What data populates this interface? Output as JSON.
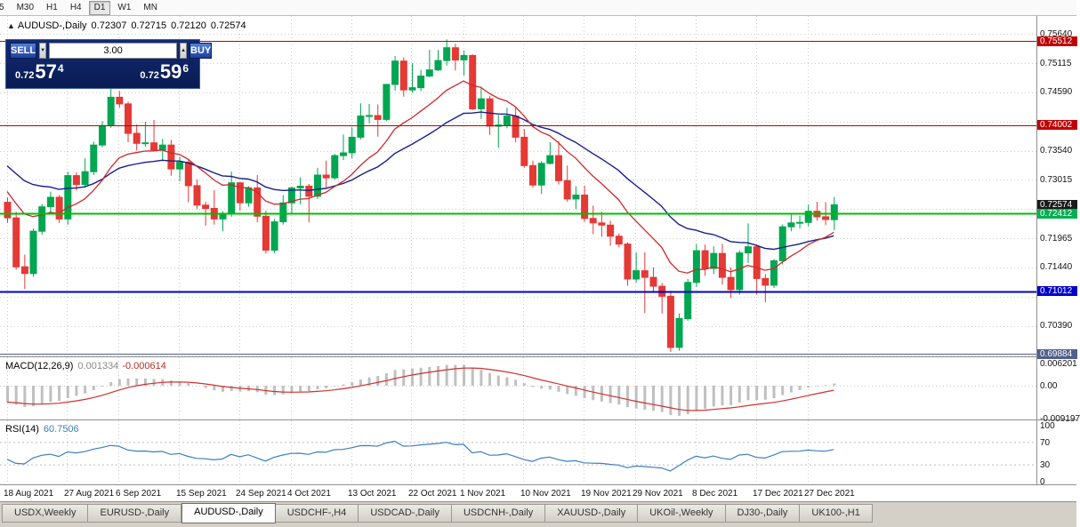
{
  "toolbar": {
    "timeframes": [
      {
        "label": "5",
        "active": false
      },
      {
        "label": "M30",
        "active": false
      },
      {
        "label": "H1",
        "active": false
      },
      {
        "label": "H4",
        "active": false
      },
      {
        "label": "D1",
        "active": true
      },
      {
        "label": "W1",
        "active": false
      },
      {
        "label": "MN",
        "active": false
      }
    ]
  },
  "chart_header": {
    "collapse_icon": "▲",
    "title": "AUDUSD-,Daily",
    "open": "0.72307",
    "high": "0.72715",
    "low": "0.72120",
    "close": "0.72574"
  },
  "trade_panel": {
    "sell_label": "SELL",
    "buy_label": "BUY",
    "volume_value": "3.00",
    "spin_down_icon": "▼",
    "spin_up_icon": "▲",
    "sell_price_main": "0.72",
    "sell_price_pips": "57",
    "sell_price_point": "4",
    "buy_price_main": "0.72",
    "buy_price_pips": "59",
    "buy_price_point": "6"
  },
  "price_axis": {
    "grid_prices": [
      0.7564,
      0.75115,
      0.7459,
      0.74065,
      0.7354,
      0.73015,
      0.7249,
      0.71965,
      0.7144,
      0.70915,
      0.7039,
      0.69865
    ],
    "tick_labels": [
      {
        "label": "0.75640",
        "price": 0.7564
      },
      {
        "label": "0.75115",
        "price": 0.75115
      },
      {
        "label": "0.74590",
        "price": 0.7459
      },
      {
        "label": "0.73540",
        "price": 0.7354
      },
      {
        "label": "0.73015",
        "price": 0.73015
      },
      {
        "label": "0.71965",
        "price": 0.71965
      },
      {
        "label": "0.71440",
        "price": 0.7144
      },
      {
        "label": "0.70390",
        "price": 0.7039
      }
    ],
    "badges": [
      {
        "label": "0.75512",
        "price": 0.75512,
        "color": "#c00000"
      },
      {
        "label": "0.74002",
        "price": 0.74002,
        "color": "#c00000"
      },
      {
        "label": "0.72574",
        "price": 0.72574,
        "color": "#1a1a1a"
      },
      {
        "label": "0.72412",
        "price": 0.72412,
        "color": "#00b050"
      },
      {
        "label": "0.71012",
        "price": 0.71012,
        "color": "#0000c8"
      },
      {
        "label": "0.69884",
        "price": 0.69884,
        "color": "#50608a"
      }
    ]
  },
  "horizontal_lines": [
    {
      "name": "resistance-7551",
      "price": 0.75512,
      "color": "#c00000",
      "width": 1
    },
    {
      "name": "resistance-7400",
      "price": 0.74002,
      "color": "#c00000",
      "width": 1
    },
    {
      "name": "support-green-7241",
      "price": 0.72412,
      "color": "#00c000",
      "width": 2
    },
    {
      "name": "support-blue-7101",
      "price": 0.71012,
      "color": "#0000c8",
      "width": 2
    },
    {
      "name": "support-low-6988",
      "price": 0.69884,
      "color": "#50608a",
      "width": 1
    }
  ],
  "date_axis": {
    "labels": [
      "18 Aug 2021",
      "27 Aug 2021",
      "6 Sep 2021",
      "15 Sep 2021",
      "24 Sep 2021",
      "4 Oct 2021",
      "13 Oct 2021",
      "22 Oct 2021",
      "1 Nov 2021",
      "10 Nov 2021",
      "19 Nov 2021",
      "29 Nov 2021",
      "8 Dec 2021",
      "17 Dec 2021",
      "27 Dec 2021"
    ],
    "candle_indices": [
      0,
      7,
      13,
      20,
      27,
      33,
      40,
      47,
      53,
      60,
      67,
      73,
      80,
      87,
      93
    ]
  },
  "macd_panel": {
    "label": "MACD(12,26,9)",
    "main_value": "0.001334",
    "signal_value": "-0.000614",
    "histogram_color": "#c0c0c0",
    "signal_color": "#d03030",
    "axis_labels": [
      {
        "label": "0.006201",
        "value": 0.006201
      },
      {
        "label": "0.00",
        "value": 0
      },
      {
        "label": "-0.009197",
        "value": -0.009197
      }
    ]
  },
  "rsi_panel": {
    "label": "RSI(14)",
    "value": "60.7506",
    "line_color": "#3e7ec1",
    "levels": [
      70,
      30
    ],
    "axis_labels": [
      {
        "label": "100",
        "value": 100
      },
      {
        "label": "70",
        "value": 70
      },
      {
        "label": "30",
        "value": 30
      },
      {
        "label": "0",
        "value": 0
      }
    ]
  },
  "tabs": [
    {
      "label": "USDX,Weekly",
      "active": false
    },
    {
      "label": "EURUSD-,Daily",
      "active": false
    },
    {
      "label": "AUDUSD-,Daily",
      "active": true
    },
    {
      "label": "USDCHF-,H4",
      "active": false
    },
    {
      "label": "USDCAD-,Daily",
      "active": false
    },
    {
      "label": "USDCNH-,Daily",
      "active": false
    },
    {
      "label": "XAUUSD-,Daily",
      "active": false
    },
    {
      "label": "UKOil-,Weekly",
      "active": false
    },
    {
      "label": "DJ30-,Daily",
      "active": false
    },
    {
      "label": "UK100-,H1",
      "active": false
    }
  ],
  "chart_data": {
    "type": "candlestick",
    "symbol": "AUDUSD-",
    "timeframe": "Daily",
    "year": "2021",
    "ylim": [
      0.6985,
      0.7597
    ],
    "bull_color": "#00a651",
    "bear_color": "#e53935",
    "ma_fast": {
      "type": "ema",
      "period": 12,
      "color": "#cc2a2a",
      "seed": 0.729
    },
    "ma_slow": {
      "type": "ema",
      "period": 26,
      "color": "#16208c",
      "seed": 0.7335
    },
    "indicators": [
      {
        "name": "MACD",
        "params": [
          12,
          26,
          9
        ],
        "last_main": 0.001334,
        "last_signal": -0.000614
      },
      {
        "name": "RSI",
        "params": [
          14
        ],
        "last": 60.7506
      }
    ],
    "candles": [
      [
        "08-18",
        0.7262,
        0.7271,
        0.7225,
        0.7234
      ],
      [
        "08-19",
        0.7234,
        0.7245,
        0.7141,
        0.7146
      ],
      [
        "08-20",
        0.7146,
        0.7168,
        0.7106,
        0.7134
      ],
      [
        "08-23",
        0.7134,
        0.7215,
        0.7128,
        0.721
      ],
      [
        "08-24",
        0.721,
        0.7259,
        0.7204,
        0.7254
      ],
      [
        "08-25",
        0.7254,
        0.7281,
        0.7244,
        0.7271
      ],
      [
        "08-26",
        0.7271,
        0.7275,
        0.7225,
        0.7232
      ],
      [
        "08-27",
        0.7232,
        0.7317,
        0.7222,
        0.731
      ],
      [
        "08-30",
        0.731,
        0.7316,
        0.7283,
        0.7294
      ],
      [
        "08-31",
        0.7294,
        0.7341,
        0.7288,
        0.7317
      ],
      [
        "09-01",
        0.7317,
        0.7371,
        0.7311,
        0.7365
      ],
      [
        "09-02",
        0.7365,
        0.7408,
        0.7361,
        0.74
      ],
      [
        "09-03",
        0.74,
        0.7478,
        0.7396,
        0.7451
      ],
      [
        "09-06",
        0.7451,
        0.7462,
        0.7432,
        0.7439
      ],
      [
        "09-07",
        0.7439,
        0.7443,
        0.737,
        0.7386
      ],
      [
        "09-08",
        0.7386,
        0.7402,
        0.7355,
        0.7368
      ],
      [
        "09-09",
        0.7368,
        0.7407,
        0.7362,
        0.7369
      ],
      [
        "09-10",
        0.7369,
        0.741,
        0.7354,
        0.7356
      ],
      [
        "09-13",
        0.7356,
        0.7376,
        0.7336,
        0.7365
      ],
      [
        "09-14",
        0.7365,
        0.7374,
        0.731,
        0.7322
      ],
      [
        "09-15",
        0.7322,
        0.7344,
        0.73,
        0.7334
      ],
      [
        "09-16",
        0.7334,
        0.734,
        0.7262,
        0.7292
      ],
      [
        "09-17",
        0.7292,
        0.7303,
        0.725,
        0.7257
      ],
      [
        "09-20",
        0.7257,
        0.7263,
        0.722,
        0.7251
      ],
      [
        "09-21",
        0.7251,
        0.7284,
        0.7222,
        0.7232
      ],
      [
        "09-22",
        0.7232,
        0.7246,
        0.721,
        0.7241
      ],
      [
        "09-23",
        0.7241,
        0.7317,
        0.7236,
        0.7297
      ],
      [
        "09-24",
        0.7297,
        0.7299,
        0.7247,
        0.7261
      ],
      [
        "09-27",
        0.7261,
        0.7291,
        0.7254,
        0.7288
      ],
      [
        "09-28",
        0.7288,
        0.7311,
        0.7226,
        0.7237
      ],
      [
        "09-29",
        0.7237,
        0.7247,
        0.717,
        0.7176
      ],
      [
        "09-30",
        0.7176,
        0.7232,
        0.7171,
        0.7227
      ],
      [
        "10-01",
        0.7227,
        0.7275,
        0.7222,
        0.7261
      ],
      [
        "10-04",
        0.7261,
        0.729,
        0.7243,
        0.7288
      ],
      [
        "10-05",
        0.7288,
        0.7307,
        0.7258,
        0.7291
      ],
      [
        "10-06",
        0.7291,
        0.7295,
        0.7226,
        0.7273
      ],
      [
        "10-07",
        0.7273,
        0.7324,
        0.7268,
        0.7311
      ],
      [
        "10-08",
        0.7311,
        0.7337,
        0.7288,
        0.7306
      ],
      [
        "10-11",
        0.7306,
        0.7349,
        0.7303,
        0.7346
      ],
      [
        "10-12",
        0.7346,
        0.7384,
        0.7338,
        0.7351
      ],
      [
        "10-13",
        0.7351,
        0.7397,
        0.7341,
        0.7379
      ],
      [
        "10-14",
        0.7379,
        0.744,
        0.7375,
        0.7417
      ],
      [
        "10-15",
        0.7417,
        0.7439,
        0.7404,
        0.7418
      ],
      [
        "10-18",
        0.7418,
        0.7438,
        0.738,
        0.7411
      ],
      [
        "10-19",
        0.7411,
        0.7475,
        0.7408,
        0.7474
      ],
      [
        "10-20",
        0.7474,
        0.7525,
        0.7463,
        0.7516
      ],
      [
        "10-21",
        0.7516,
        0.7522,
        0.7452,
        0.7464
      ],
      [
        "10-22",
        0.7464,
        0.7512,
        0.7459,
        0.7468
      ],
      [
        "10-25",
        0.7468,
        0.75,
        0.7462,
        0.7489
      ],
      [
        "10-26",
        0.7489,
        0.7536,
        0.7487,
        0.75
      ],
      [
        "10-27",
        0.75,
        0.7536,
        0.7498,
        0.7517
      ],
      [
        "10-28",
        0.7517,
        0.7555,
        0.7508,
        0.754
      ],
      [
        "10-29",
        0.754,
        0.7547,
        0.7499,
        0.7518
      ],
      [
        "11-01",
        0.7518,
        0.7535,
        0.749,
        0.7526
      ],
      [
        "11-02",
        0.7526,
        0.7528,
        0.7428,
        0.743
      ],
      [
        "11-03",
        0.743,
        0.747,
        0.7412,
        0.7448
      ],
      [
        "11-04",
        0.7448,
        0.7453,
        0.7383,
        0.7399
      ],
      [
        "11-05",
        0.7399,
        0.7419,
        0.736,
        0.7401
      ],
      [
        "11-08",
        0.7401,
        0.7432,
        0.7395,
        0.7417
      ],
      [
        "11-09",
        0.7417,
        0.7432,
        0.737,
        0.7379
      ],
      [
        "11-10",
        0.7379,
        0.7394,
        0.7324,
        0.7328
      ],
      [
        "11-11",
        0.7328,
        0.7337,
        0.7288,
        0.7293
      ],
      [
        "11-12",
        0.7293,
        0.7336,
        0.7277,
        0.7332
      ],
      [
        "11-15",
        0.7332,
        0.737,
        0.733,
        0.7346
      ],
      [
        "11-16",
        0.7346,
        0.7372,
        0.7294,
        0.7301
      ],
      [
        "11-17",
        0.7301,
        0.7328,
        0.7263,
        0.7268
      ],
      [
        "11-18",
        0.7268,
        0.7291,
        0.725,
        0.7275
      ],
      [
        "11-19",
        0.7275,
        0.7292,
        0.7227,
        0.7233
      ],
      [
        "11-22",
        0.7233,
        0.7256,
        0.7205,
        0.7225
      ],
      [
        "11-23",
        0.7225,
        0.7245,
        0.72,
        0.7221
      ],
      [
        "11-24",
        0.7221,
        0.7229,
        0.7184,
        0.7201
      ],
      [
        "11-25",
        0.7201,
        0.7206,
        0.7181,
        0.7187
      ],
      [
        "11-26",
        0.7187,
        0.719,
        0.7112,
        0.7124
      ],
      [
        "11-29",
        0.7124,
        0.7172,
        0.7118,
        0.7139
      ],
      [
        "11-30",
        0.7139,
        0.7172,
        0.7063,
        0.7127
      ],
      [
        "12-01",
        0.7127,
        0.7145,
        0.71,
        0.7111
      ],
      [
        "12-02",
        0.7111,
        0.7117,
        0.7062,
        0.7093
      ],
      [
        "12-03",
        0.7093,
        0.7103,
        0.6993,
        0.7001
      ],
      [
        "12-06",
        0.7001,
        0.7062,
        0.6995,
        0.7053
      ],
      [
        "12-07",
        0.7053,
        0.7124,
        0.7049,
        0.7118
      ],
      [
        "12-08",
        0.7118,
        0.7187,
        0.711,
        0.7175
      ],
      [
        "12-09",
        0.7175,
        0.7186,
        0.713,
        0.7143
      ],
      [
        "12-10",
        0.7143,
        0.7183,
        0.7133,
        0.717
      ],
      [
        "12-13",
        0.717,
        0.7187,
        0.7114,
        0.7127
      ],
      [
        "12-14",
        0.7127,
        0.7145,
        0.709,
        0.7105
      ],
      [
        "12-15",
        0.7105,
        0.7176,
        0.7096,
        0.7171
      ],
      [
        "12-16",
        0.7171,
        0.7224,
        0.7153,
        0.7182
      ],
      [
        "12-17",
        0.7182,
        0.7186,
        0.7096,
        0.7125
      ],
      [
        "12-20",
        0.7125,
        0.7133,
        0.7082,
        0.7113
      ],
      [
        "12-21",
        0.7113,
        0.716,
        0.7108,
        0.7157
      ],
      [
        "12-22",
        0.7157,
        0.7222,
        0.715,
        0.7218
      ],
      [
        "12-23",
        0.7218,
        0.7242,
        0.721,
        0.7225
      ],
      [
        "12-24",
        0.7225,
        0.7238,
        0.7215,
        0.7226
      ],
      [
        "12-27",
        0.7226,
        0.7258,
        0.7219,
        0.7246
      ],
      [
        "12-28",
        0.7246,
        0.7263,
        0.7229,
        0.7236
      ],
      [
        "12-29",
        0.7236,
        0.7262,
        0.7221,
        0.7231
      ],
      [
        "12-30",
        0.72307,
        0.72715,
        0.7212,
        0.72574
      ]
    ]
  }
}
